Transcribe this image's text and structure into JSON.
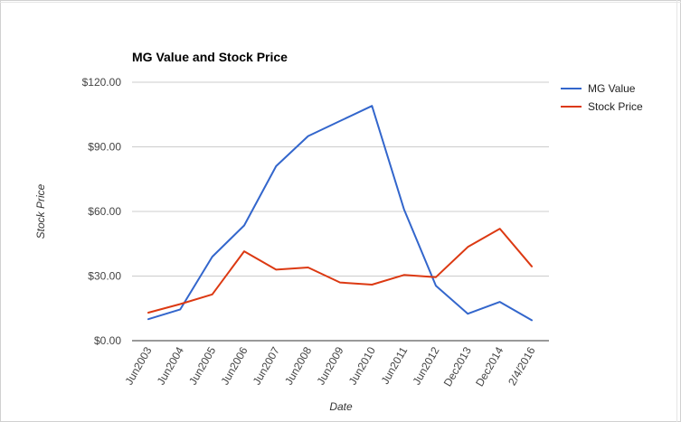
{
  "chart_data": {
    "type": "line",
    "title": "MG Value and Stock Price",
    "xlabel": "Date",
    "ylabel": "Stock Price",
    "categories": [
      "Jun2003",
      "Jun2004",
      "Jun2005",
      "Jun2006",
      "Jun2007",
      "Jun2008",
      "Jun2009",
      "Jun2010",
      "Jun2011",
      "Jun2012",
      "Dec2013",
      "Dec2014",
      "2/4/2016"
    ],
    "series": [
      {
        "name": "MG Value",
        "color": "#3366cc",
        "values": [
          10,
          14.5,
          39,
          53.5,
          81,
          95,
          102,
          109,
          61,
          25.5,
          12.5,
          18,
          9.5
        ]
      },
      {
        "name": "Stock Price",
        "color": "#dc3912",
        "values": [
          13,
          17,
          21.5,
          41.5,
          33,
          34,
          27,
          26,
          30.5,
          29.5,
          43.5,
          52,
          34.5
        ]
      }
    ],
    "ylim": [
      0,
      120
    ],
    "yticks": [
      0,
      30,
      60,
      90,
      120
    ],
    "ytick_labels": [
      "$0.00",
      "$30.00",
      "$60.00",
      "$90.00",
      "$120.00"
    ],
    "grid": true,
    "legend": "right"
  }
}
